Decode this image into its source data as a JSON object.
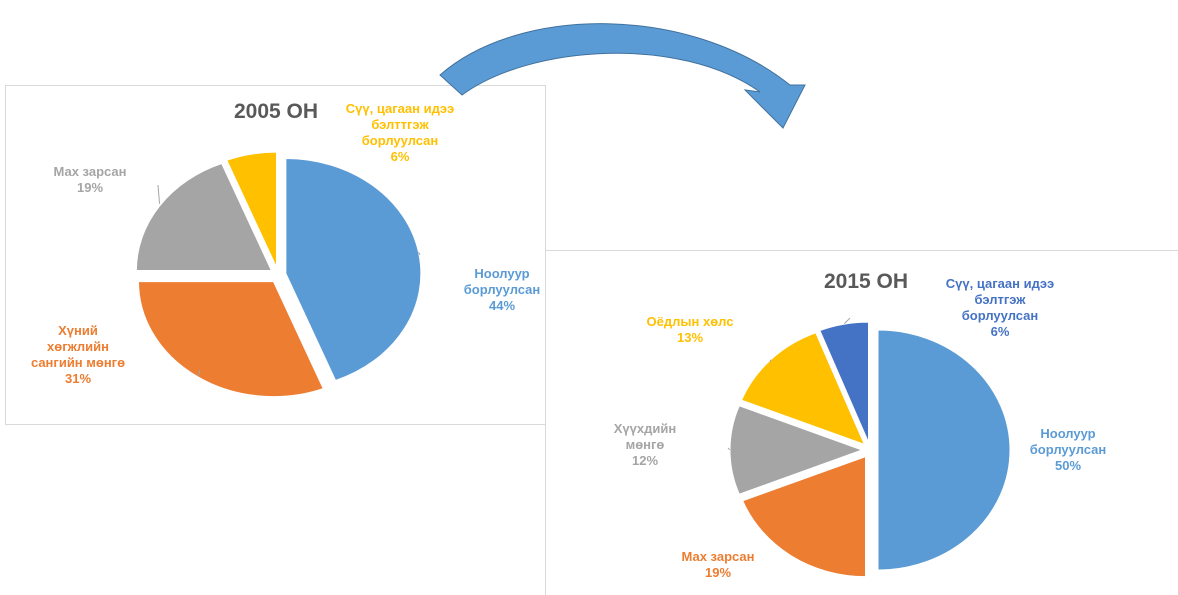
{
  "chart_data": [
    {
      "type": "pie",
      "title": "2005 ОН",
      "categories": [
        "Ноолуур борлуулсан",
        "Хүний хөгжлийн сангийн мөнгө",
        "Мах зарсан",
        "Сүү, цагаан идээ бэлттгэж борлуулсан"
      ],
      "values": [
        44,
        31,
        19,
        6
      ],
      "value_labels": [
        "44%",
        "31%",
        "19%",
        "6%"
      ],
      "colors": [
        "#5b9bd5",
        "#ed7d31",
        "#a5a5a5",
        "#ffc000"
      ]
    },
    {
      "type": "pie",
      "title": "2015 ОН",
      "categories": [
        "Ноолуур борлуулсан",
        "Мах зарсан",
        "Хүүхдийн мөнгө",
        "Оёдлын хөлс",
        "Сүү, цагаан идээ бэлтгэж борлуулсан"
      ],
      "values": [
        50,
        19,
        12,
        13,
        6
      ],
      "value_labels": [
        "50%",
        "19%",
        "12%",
        "13%",
        "6%"
      ],
      "colors": [
        "#5b9bd5",
        "#ed7d31",
        "#a5a5a5",
        "#ffc000",
        "#4472c4"
      ]
    }
  ]
}
